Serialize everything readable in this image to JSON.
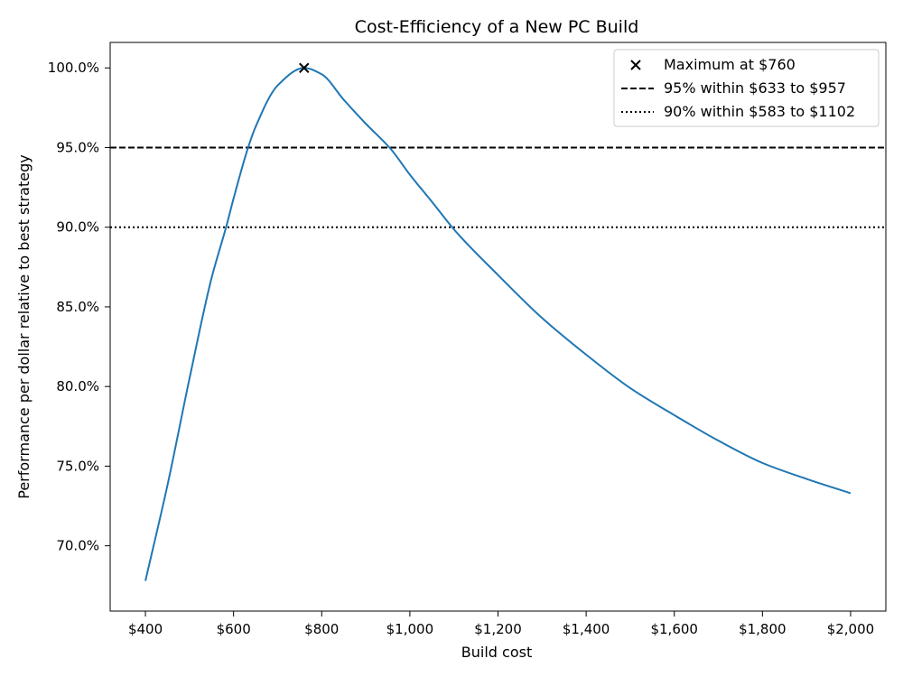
{
  "chart_data": {
    "type": "line",
    "title": "Cost-Efficiency of a New PC Build",
    "xlabel": "Build cost",
    "ylabel": "Performance per dollar relative to best strategy",
    "xlim": [
      320,
      2080
    ],
    "ylim": [
      65.9,
      101.6
    ],
    "x_ticks": [
      {
        "value": 400,
        "label": "$400"
      },
      {
        "value": 600,
        "label": "$600"
      },
      {
        "value": 800,
        "label": "$800"
      },
      {
        "value": 1000,
        "label": "$1,000"
      },
      {
        "value": 1200,
        "label": "$1,200"
      },
      {
        "value": 1400,
        "label": "$1,400"
      },
      {
        "value": 1600,
        "label": "$1,600"
      },
      {
        "value": 1800,
        "label": "$1,800"
      },
      {
        "value": 2000,
        "label": "$2,000"
      }
    ],
    "y_ticks": [
      {
        "value": 70,
        "label": "70.0%"
      },
      {
        "value": 75,
        "label": "75.0%"
      },
      {
        "value": 80,
        "label": "80.0%"
      },
      {
        "value": 85,
        "label": "85.0%"
      },
      {
        "value": 90,
        "label": "90.0%"
      },
      {
        "value": 95,
        "label": "95.0%"
      },
      {
        "value": 100,
        "label": "100.0%"
      }
    ],
    "grid": false,
    "legend_position": "top-right",
    "series": [
      {
        "color": "#1f77b4",
        "x": [
          400,
          450,
          500,
          550,
          583,
          600,
          633,
          650,
          700,
          760,
          800,
          850,
          900,
          957,
          1000,
          1050,
          1102,
          1200,
          1300,
          1400,
          1500,
          1600,
          1700,
          1800,
          1900,
          2000
        ],
        "y": [
          67.8,
          73.8,
          80.5,
          86.8,
          90.0,
          91.8,
          95.0,
          96.3,
          98.9,
          100.0,
          99.6,
          98.0,
          96.5,
          94.9,
          93.3,
          91.6,
          89.8,
          87.0,
          84.3,
          82.0,
          79.9,
          78.2,
          76.6,
          75.2,
          74.2,
          73.3
        ]
      }
    ],
    "maximum": {
      "x": 760,
      "y": 100.0,
      "legend": "Maximum at $760"
    },
    "hlines": [
      {
        "y": 95.0,
        "style": "dashed",
        "legend": "95% within $633 to $957"
      },
      {
        "y": 90.0,
        "style": "dotted",
        "legend": "90% within $583 to $1102"
      }
    ]
  }
}
